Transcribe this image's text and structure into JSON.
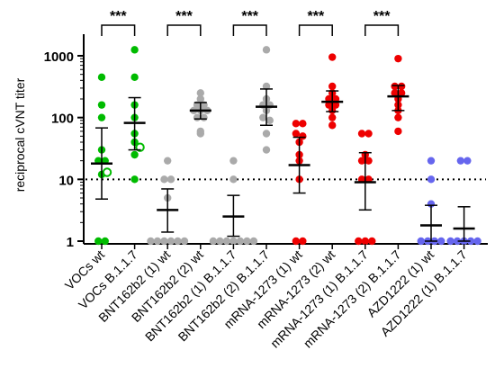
{
  "chart_data": {
    "type": "scatter",
    "ylabel": "reciprocal cVNT titer",
    "yscale": "log",
    "ylim": [
      1,
      2000
    ],
    "yticks": [
      {
        "value": 1,
        "label": "1"
      },
      {
        "value": 10,
        "label": "10"
      },
      {
        "value": 100,
        "label": "100"
      },
      {
        "value": 1000,
        "label": "1000"
      }
    ],
    "reference_line": {
      "value": 10,
      "style": "dotted"
    },
    "categories": [
      "VOCs wt",
      "VOCs B.1.1.7",
      "BNT162b2 (1) wt",
      "BNT162b2 (2) wt",
      "BNT162b2 (1) B.1.1.7",
      "BNT162b2 (2) B.1.1.7",
      "mRNA-1273 (1) wt",
      "mRNA-1273 (2) wt",
      "mRNA-1273 (1) B.1.1.7",
      "mRNA-1273 (2) B.1.1.7",
      "AZD1222 (1) wt",
      "AZD1222 (1) B.1.1.7"
    ],
    "colors": [
      "#00bb00",
      "#00bb00",
      "#aaaaaa",
      "#aaaaaa",
      "#aaaaaa",
      "#aaaaaa",
      "#ee0000",
      "#ee0000",
      "#ee0000",
      "#ee0000",
      "#6666ee",
      "#6666ee"
    ],
    "groups": [
      {
        "points": [
          450,
          160,
          100,
          30,
          20,
          20,
          12,
          1,
          1
        ],
        "open_points": [
          13
        ],
        "mean": 18,
        "ci": [
          4.8,
          68
        ]
      },
      {
        "points": [
          1250,
          450,
          160,
          100,
          55,
          40,
          25,
          10
        ],
        "open_points": [
          33
        ],
        "mean": 82,
        "ci": [
          30,
          210
        ]
      },
      {
        "points": [
          20,
          10,
          10,
          5,
          1,
          1,
          1,
          1,
          1,
          1
        ],
        "open_points": [],
        "mean": 3.2,
        "ci": [
          1.4,
          7
        ]
      },
      {
        "points": [
          250,
          200,
          160,
          160,
          130,
          130,
          130,
          100,
          100,
          60,
          55
        ],
        "open_points": [],
        "mean": 130,
        "ci": [
          95,
          175
        ]
      },
      {
        "points": [
          20,
          10,
          1,
          1,
          1,
          1,
          1,
          1,
          1
        ],
        "open_points": [],
        "mean": 2.5,
        "ci": [
          1.2,
          5.5
        ]
      },
      {
        "points": [
          1250,
          320,
          200,
          160,
          160,
          130,
          100,
          90,
          55,
          30
        ],
        "open_points": [],
        "mean": 150,
        "ci": [
          75,
          290
        ]
      },
      {
        "points": [
          80,
          80,
          55,
          50,
          40,
          25,
          20,
          10,
          1,
          1
        ],
        "open_points": [],
        "mean": 17,
        "ci": [
          6,
          48
        ]
      },
      {
        "points": [
          950,
          320,
          250,
          200,
          200,
          160,
          160,
          130,
          100,
          75
        ],
        "open_points": [],
        "mean": 180,
        "ci": [
          125,
          270
        ]
      },
      {
        "points": [
          55,
          55,
          25,
          20,
          20,
          10,
          10,
          1,
          1,
          1
        ],
        "open_points": [],
        "mean": 9,
        "ci": [
          3.2,
          27
        ]
      },
      {
        "points": [
          900,
          320,
          320,
          250,
          250,
          200,
          160,
          130,
          100,
          60
        ],
        "open_points": [],
        "mean": 220,
        "ci": [
          130,
          330
        ]
      },
      {
        "points": [
          20,
          10,
          4,
          1,
          1,
          1,
          1
        ],
        "open_points": [],
        "mean": 1.8,
        "ci": [
          1,
          3.8
        ]
      },
      {
        "points": [
          20,
          20,
          1,
          1,
          1,
          1,
          1
        ],
        "open_points": [],
        "mean": 1.6,
        "ci": [
          1,
          3.6
        ]
      }
    ],
    "comparisons": [
      {
        "from": 0,
        "to": 1,
        "label": "***"
      },
      {
        "from": 2,
        "to": 3,
        "label": "***"
      },
      {
        "from": 4,
        "to": 5,
        "label": "***"
      },
      {
        "from": 6,
        "to": 7,
        "label": "***"
      },
      {
        "from": 8,
        "to": 9,
        "label": "***"
      }
    ]
  }
}
